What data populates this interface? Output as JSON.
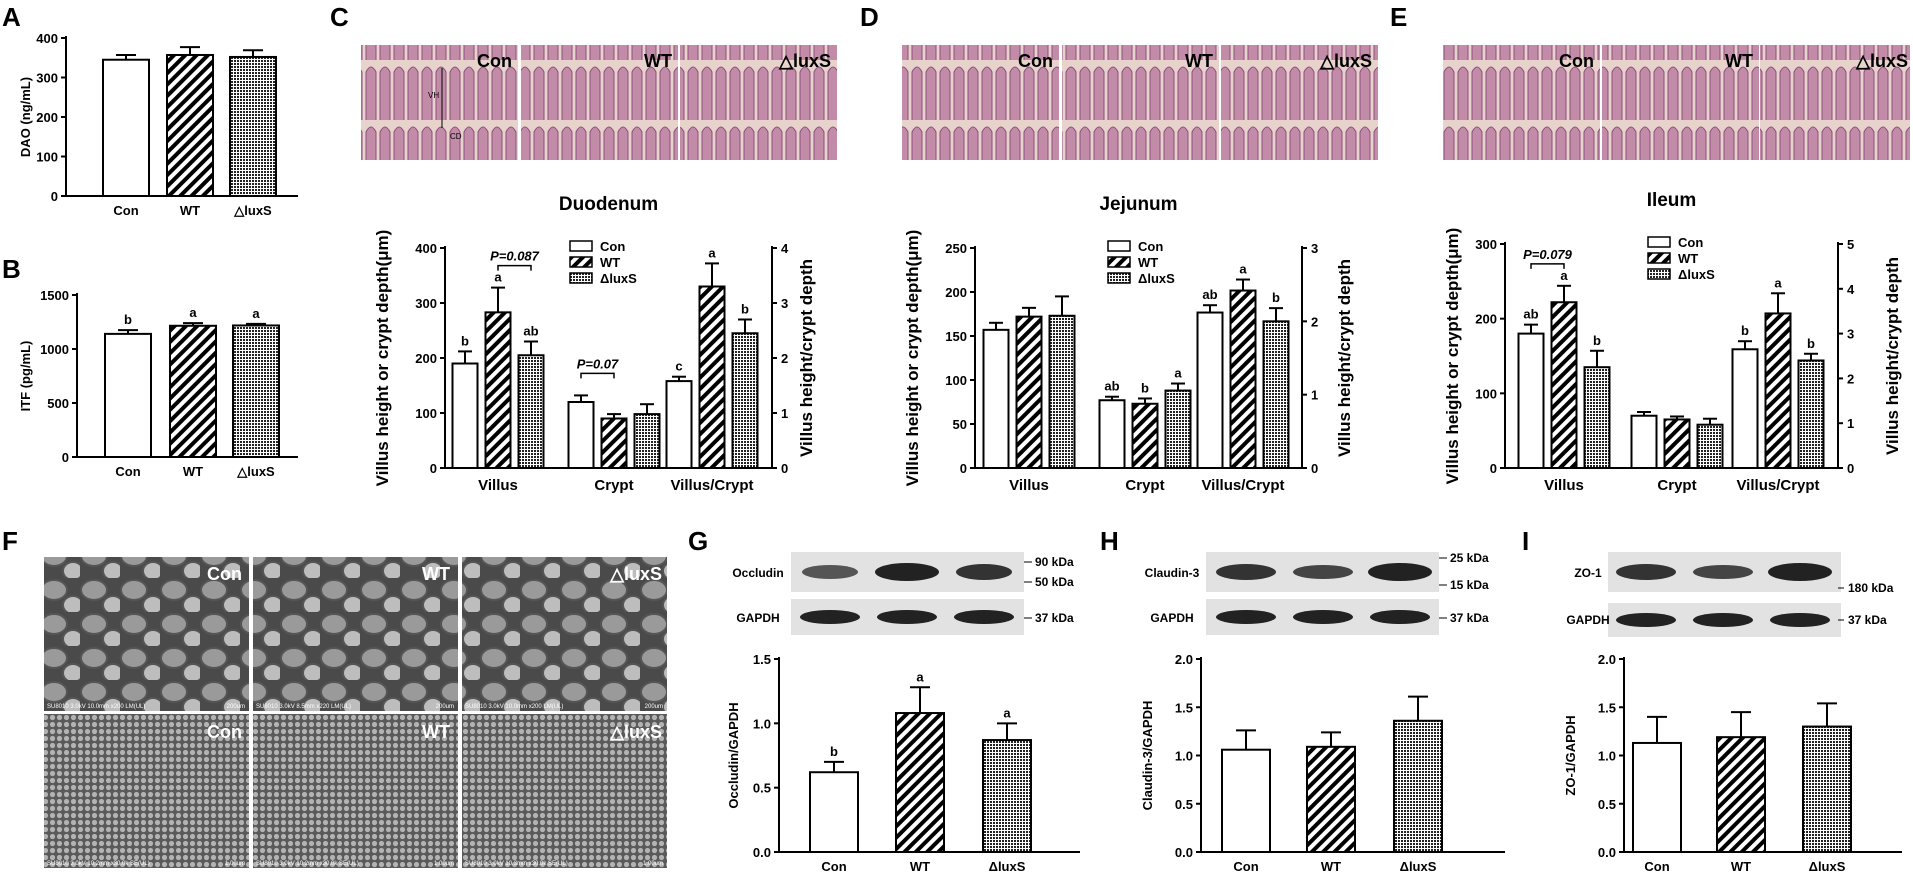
{
  "panel_letters": {
    "A": "A",
    "B": "B",
    "C": "C",
    "D": "D",
    "E": "E",
    "F": "F",
    "G": "G",
    "H": "H",
    "I": "I"
  },
  "group_labels": [
    "Con",
    "WT",
    "△luxS"
  ],
  "group_labels_alt": [
    "Con",
    "WT",
    "ΔluxS"
  ],
  "colors": {
    "bar_stroke": "#000000",
    "con_fill": "#ffffff",
    "wt_fill": "diagonal-hatch",
    "luxs_fill": "dense-dots"
  },
  "histology": {
    "C": {
      "labels": [
        "Con",
        "WT",
        "△luxS"
      ],
      "vh": "VH",
      "cd": "CD"
    },
    "D": {
      "labels": [
        "Con",
        "WT",
        "△luxS"
      ]
    },
    "E": {
      "labels": [
        "Con",
        "WT",
        "△luxS"
      ]
    }
  },
  "sem": {
    "top_labels": [
      "Con",
      "WT",
      "△luxS"
    ],
    "bottom_labels": [
      "Con",
      "WT",
      "△luxS"
    ],
    "captions_top": [
      "SU8010 3.0kV 10.0mm x200 LM(UL)",
      "SU8010 3.0kV 8.5mm x220 LM(UL)",
      "SU8010 3.0kV 10.0mm x200 LM(UL)"
    ],
    "scale_top": [
      "200um",
      "200um",
      "200um"
    ],
    "captions_bottom": [
      "SU8010 3.0kV 10.2mm x30.0k SE(UL)",
      "SU8010 3.0kV 10.2mm x30.0k SE(UL)",
      "SU8010 3.0kV 10.3mm x30.0k SE(UL)"
    ],
    "scale_bottom": [
      "1.00um",
      "1.00um",
      "1.00um"
    ]
  },
  "westerns": {
    "G": {
      "target": "Occludin",
      "control": "GAPDH",
      "markers": [
        "90 kDa",
        "50 kDa"
      ],
      "control_marker": "37 kDa"
    },
    "H": {
      "target": "Claudin-3",
      "control": "GAPDH",
      "markers": [
        "25 kDa",
        "15 kDa"
      ],
      "control_marker": "37 kDa"
    },
    "I": {
      "target": "ZO-1",
      "control": "GAPDH",
      "markers": [
        "180 kDa"
      ],
      "control_marker": "37 kDa"
    }
  },
  "chart_data": [
    {
      "panel": "A",
      "type": "bar",
      "categories": [
        "Con",
        "WT",
        "△luxS"
      ],
      "values": [
        345,
        357,
        352
      ],
      "errors": [
        12,
        20,
        17
      ],
      "ylabel": "DAO (ng/mL)",
      "ylim": [
        0,
        400
      ],
      "yticks": [
        0,
        100,
        200,
        300,
        400
      ],
      "sig": [
        "",
        "",
        ""
      ]
    },
    {
      "panel": "B",
      "type": "bar",
      "categories": [
        "Con",
        "WT",
        "△luxS"
      ],
      "values": [
        1140,
        1215,
        1218
      ],
      "errors": [
        35,
        25,
        15
      ],
      "ylabel": "ITF (pg/mL)",
      "ylim": [
        0,
        1500
      ],
      "yticks": [
        0,
        500,
        1000,
        1500
      ],
      "sig": [
        "b",
        "a",
        "a"
      ]
    },
    {
      "panel": "C",
      "type": "bar",
      "title": "Duodenum",
      "categories": [
        "Villus",
        "Crypt",
        "Villus/Crypt"
      ],
      "series": [
        {
          "name": "Con",
          "values": [
            190,
            120,
            1.58
          ],
          "errors": [
            22,
            12,
            0.08
          ]
        },
        {
          "name": "WT",
          "values": [
            283,
            90,
            3.3
          ],
          "errors": [
            45,
            8,
            0.42
          ]
        },
        {
          "name": "ΔluxS",
          "values": [
            205,
            98,
            2.45
          ],
          "errors": [
            25,
            18,
            0.25
          ]
        }
      ],
      "ylabel": "Villus height or crypt depth(μm)",
      "ylim": [
        0,
        400
      ],
      "yticks": [
        0,
        100,
        200,
        300,
        400
      ],
      "y2label": "Villus height/crypt depth",
      "y2lim": [
        0,
        4
      ],
      "y2ticks": [
        0,
        1,
        2,
        3,
        4
      ],
      "sig": [
        [
          "b",
          "a",
          "ab"
        ],
        [
          "",
          "",
          ""
        ],
        [
          "c",
          "a",
          "b"
        ]
      ],
      "annotations": [
        {
          "text": "P=0.087",
          "group": 0,
          "from": 1,
          "to": 2
        },
        {
          "text": "P=0.07",
          "group": 1,
          "from": 0,
          "to": 1
        }
      ]
    },
    {
      "panel": "D",
      "type": "bar",
      "title": "Jejunum",
      "categories": [
        "Villus",
        "Crypt",
        "Villus/Crypt"
      ],
      "series": [
        {
          "name": "Con",
          "values": [
            157,
            77,
            2.12
          ],
          "errors": [
            8,
            4,
            0.1
          ]
        },
        {
          "name": "WT",
          "values": [
            172,
            73,
            2.42
          ],
          "errors": [
            10,
            6,
            0.15
          ]
        },
        {
          "name": "ΔluxS",
          "values": [
            173,
            88,
            2.0
          ],
          "errors": [
            22,
            8,
            0.18
          ]
        }
      ],
      "ylabel": "Villus height or crypt depth(μm)",
      "ylim": [
        0,
        250
      ],
      "yticks": [
        0,
        50,
        100,
        150,
        200,
        250
      ],
      "y2label": "Villus height/crypt depth",
      "y2lim": [
        0,
        3
      ],
      "y2ticks": [
        0,
        1,
        2,
        3
      ],
      "sig": [
        [
          "",
          "",
          ""
        ],
        [
          "ab",
          "b",
          "a"
        ],
        [
          "ab",
          "a",
          "b"
        ]
      ],
      "annotations": []
    },
    {
      "panel": "E",
      "type": "bar",
      "title": "Ileum",
      "categories": [
        "Villus",
        "Crypt",
        "Villus/Crypt"
      ],
      "series": [
        {
          "name": "Con",
          "values": [
            180,
            70,
            2.65
          ],
          "errors": [
            12,
            5,
            0.18
          ]
        },
        {
          "name": "WT",
          "values": [
            222,
            65,
            3.45
          ],
          "errors": [
            22,
            4,
            0.45
          ]
        },
        {
          "name": "ΔluxS",
          "values": [
            135,
            58,
            2.4
          ],
          "errors": [
            22,
            8,
            0.15
          ]
        }
      ],
      "ylabel": "Villus height or crypt depth(μm)",
      "ylim": [
        0,
        300
      ],
      "yticks": [
        0,
        100,
        200,
        300
      ],
      "y2label": "Villus height/crypt depth",
      "y2lim": [
        0,
        5
      ],
      "y2ticks": [
        0,
        1,
        2,
        3,
        4,
        5
      ],
      "sig": [
        [
          "ab",
          "a",
          "b"
        ],
        [
          "",
          "",
          ""
        ],
        [
          "b",
          "a",
          "b"
        ]
      ],
      "annotations": [
        {
          "text": "P=0.079",
          "group": 0,
          "from": 0,
          "to": 1
        }
      ]
    },
    {
      "panel": "G",
      "type": "bar",
      "categories": [
        "Con",
        "WT",
        "ΔluxS"
      ],
      "values": [
        0.62,
        1.08,
        0.87
      ],
      "errors": [
        0.08,
        0.2,
        0.13
      ],
      "ylabel": "Occludin/GAPDH",
      "ylim": [
        0,
        1.5
      ],
      "yticks": [
        "0.0",
        "0.5",
        "1.0",
        "1.5"
      ],
      "sig": [
        "b",
        "a",
        "a"
      ]
    },
    {
      "panel": "H",
      "type": "bar",
      "categories": [
        "Con",
        "WT",
        "ΔluxS"
      ],
      "values": [
        1.06,
        1.09,
        1.36
      ],
      "errors": [
        0.2,
        0.15,
        0.25
      ],
      "ylabel": "Claudin-3/GAPDH",
      "ylim": [
        0,
        2.0
      ],
      "yticks": [
        "0.0",
        "0.5",
        "1.0",
        "1.5",
        "2.0"
      ],
      "sig": [
        "",
        "",
        ""
      ]
    },
    {
      "panel": "I",
      "type": "bar",
      "categories": [
        "Con",
        "WT",
        "ΔluxS"
      ],
      "values": [
        1.13,
        1.19,
        1.3
      ],
      "errors": [
        0.27,
        0.26,
        0.24
      ],
      "ylabel": "ZO-1/GAPDH",
      "ylim": [
        0,
        2.0
      ],
      "yticks": [
        "0.0",
        "0.5",
        "1.0",
        "1.5",
        "2.0"
      ],
      "sig": [
        "",
        "",
        ""
      ]
    }
  ]
}
